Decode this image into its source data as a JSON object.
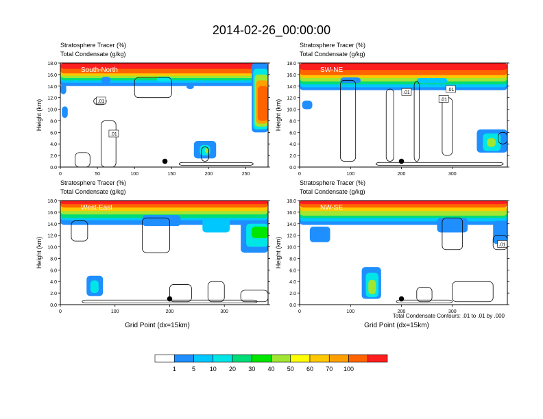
{
  "figure_title": "2014-02-26_00:00:00",
  "footer_note": "Total Condensate Contours: .01 to .01 by .000",
  "colorbar": {
    "colors": [
      "#ffffff",
      "#1f8fff",
      "#00c8ff",
      "#00e6e6",
      "#00dc78",
      "#00e600",
      "#a0e632",
      "#ffff00",
      "#ffc800",
      "#ffa000",
      "#ff6400",
      "#ff1e1e"
    ],
    "labels": [
      "1",
      "5",
      "10",
      "20",
      "30",
      "40",
      "50",
      "60",
      "70",
      "100"
    ]
  },
  "chart_data": [
    {
      "type": "heatmap",
      "title": "South-North",
      "header_line1": "Stratosphere Tracer   (%)",
      "header_line2": "Total Condensate   (g/kg)",
      "ylabel": "Height (km)",
      "xlabel": "",
      "x_ticks": [
        "0",
        "50",
        "100",
        "150",
        "200",
        "250"
      ],
      "y_ticks": [
        "0.0",
        "2.0",
        "4.0",
        "6.0",
        "8.0",
        "10.0",
        "12.0",
        "14.0",
        "16.0",
        "18.0"
      ],
      "xlim": [
        0,
        280
      ],
      "ylim": [
        0,
        18
      ],
      "marker": {
        "x": 141,
        "y": 1.0
      },
      "contour_labels": [
        {
          "text": ".01",
          "x": 55,
          "y": 11.5
        },
        {
          "text": ".01",
          "x": 72,
          "y": 5.8
        }
      ]
    },
    {
      "type": "heatmap",
      "title": "SW-NE",
      "header_line1": "Stratosphere Tracer   (%)",
      "header_line2": "Total Condensate   (g/kg)",
      "ylabel": "Height (km)",
      "xlabel": "",
      "x_ticks": [
        "0",
        "100",
        "200",
        "300"
      ],
      "y_ticks": [
        "0.0",
        "2.0",
        "4.0",
        "6.0",
        "8.0",
        "10.0",
        "12.0",
        "14.0",
        "16.0",
        "18.0"
      ],
      "xlim": [
        0,
        408
      ],
      "ylim": [
        0,
        18
      ],
      "marker": {
        "x": 200,
        "y": 1.0
      },
      "contour_labels": [
        {
          "text": ".01",
          "x": 210,
          "y": 13.0
        },
        {
          "text": ".01",
          "x": 283,
          "y": 11.8
        },
        {
          "text": ".01",
          "x": 297,
          "y": 13.5
        }
      ]
    },
    {
      "type": "heatmap",
      "title": "West-East",
      "header_line1": "Stratosphere Tracer   (%)",
      "header_line2": "Total Condensate   (g/kg)",
      "ylabel": "Height (km)",
      "xlabel": "Grid Point (dx=15km)",
      "x_ticks": [
        "0",
        "100",
        "200",
        "300"
      ],
      "y_ticks": [
        "0.0",
        "2.0",
        "4.0",
        "6.0",
        "8.0",
        "10.0",
        "12.0",
        "14.0",
        "16.0",
        "18.0"
      ],
      "xlim": [
        0,
        380
      ],
      "ylim": [
        0,
        18
      ],
      "marker": {
        "x": 200,
        "y": 1.0
      },
      "contour_labels": []
    },
    {
      "type": "heatmap",
      "title": "NW-SE",
      "header_line1": "Stratosphere Tracer   (%)",
      "header_line2": "Total Condensate   (g/kg)",
      "ylabel": "Height (km)",
      "xlabel": "Grid Point (dx=15km)",
      "x_ticks": [
        "0",
        "100",
        "200",
        "300"
      ],
      "y_ticks": [
        "0.0",
        "2.0",
        "4.0",
        "6.0",
        "8.0",
        "10.0",
        "12.0",
        "14.0",
        "16.0",
        "18.0"
      ],
      "xlim": [
        0,
        408
      ],
      "ylim": [
        0,
        18
      ],
      "marker": {
        "x": 200,
        "y": 1.0
      },
      "contour_labels": [
        {
          "text": ".01",
          "x": 398,
          "y": 10.5
        }
      ]
    }
  ]
}
